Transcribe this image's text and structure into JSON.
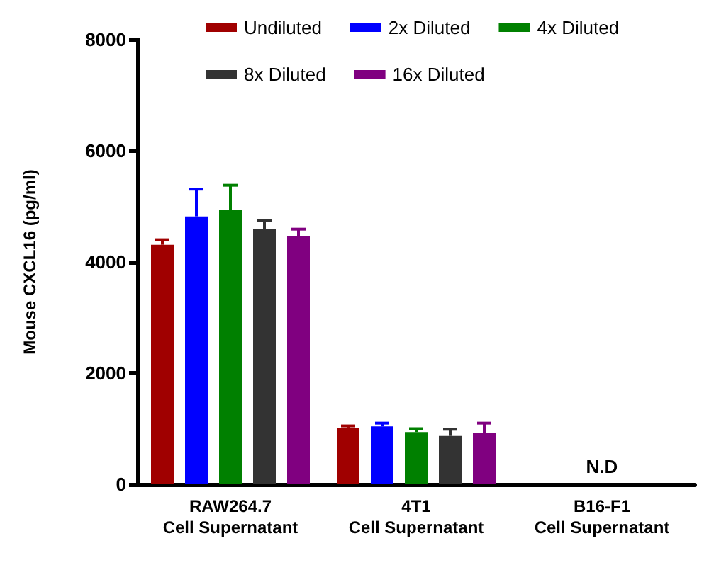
{
  "chart_data": {
    "type": "bar",
    "ylabel": "Mouse CXCL16 (pg/ml)",
    "categories": [
      "RAW264.7\nCell Supernatant",
      "4T1\nCell Supernatant",
      "B16-F1\nCell Supernatant"
    ],
    "series": [
      {
        "name": "Undiluted",
        "color": "#a00000",
        "values": [
          4310,
          1020,
          null
        ],
        "errors": [
          [
            4310,
            4400
          ],
          [
            1020,
            1050
          ],
          null
        ]
      },
      {
        "name": "2x Diluted",
        "color": "#0000ff",
        "values": [
          4820,
          1040,
          null
        ],
        "errors": [
          [
            4820,
            5310
          ],
          [
            1040,
            1100
          ],
          null
        ]
      },
      {
        "name": "4x Diluted",
        "color": "#008000",
        "values": [
          4940,
          940,
          null
        ],
        "errors": [
          [
            4940,
            5380
          ],
          [
            940,
            1000
          ],
          null
        ]
      },
      {
        "name": "8x Diluted",
        "color": "#333333",
        "values": [
          4590,
          870,
          null
        ],
        "errors": [
          [
            4590,
            4740
          ],
          [
            870,
            990
          ],
          null
        ]
      },
      {
        "name": "16x Diluted",
        "color": "#800080",
        "values": [
          4460,
          920,
          null
        ],
        "errors": [
          [
            4460,
            4590
          ],
          [
            920,
            1100
          ],
          null
        ]
      }
    ],
    "annotations": [
      "N.D"
    ],
    "ylim": [
      0,
      8000
    ],
    "yticks": [
      0,
      2000,
      4000,
      6000,
      8000
    ],
    "grid": false,
    "legend": "top right"
  }
}
